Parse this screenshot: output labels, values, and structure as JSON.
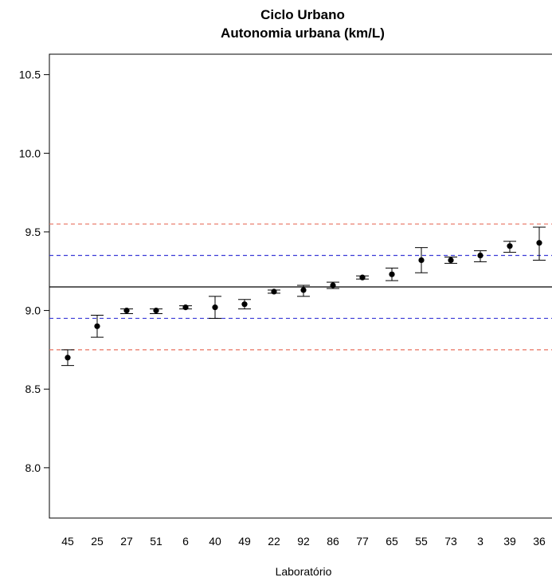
{
  "chart_data": {
    "type": "scatter",
    "title": "Ciclo Urbano",
    "subtitle": "Autonomia urbana (km/L)",
    "xlabel": "Laboratório",
    "ylabel": "",
    "ylim": [
      7.68,
      10.63
    ],
    "yticks": [
      8.0,
      8.5,
      9.0,
      9.5,
      10.0,
      10.5
    ],
    "ytick_labels": [
      "8.0",
      "8.5",
      "9.0",
      "9.5",
      "10.0",
      "10.5"
    ],
    "grid": false,
    "categories": [
      "45",
      "25",
      "27",
      "51",
      "6",
      "40",
      "49",
      "22",
      "92",
      "86",
      "77",
      "65",
      "55",
      "73",
      "3",
      "39",
      "36"
    ],
    "values": [
      8.7,
      8.9,
      9.0,
      9.0,
      9.02,
      9.02,
      9.04,
      9.12,
      9.13,
      9.16,
      9.21,
      9.23,
      9.32,
      9.32,
      9.35,
      9.41,
      9.43
    ],
    "error_low": [
      8.65,
      8.83,
      8.98,
      8.98,
      9.01,
      8.95,
      9.01,
      9.11,
      9.09,
      9.14,
      9.2,
      9.19,
      9.24,
      9.3,
      9.31,
      9.37,
      9.32
    ],
    "error_high": [
      8.75,
      8.97,
      9.01,
      9.01,
      9.03,
      9.09,
      9.07,
      9.13,
      9.16,
      9.18,
      9.22,
      9.27,
      9.4,
      9.34,
      9.38,
      9.44,
      9.53
    ],
    "reference_lines": [
      {
        "value": 9.15,
        "style": "solid",
        "color": "#000000"
      },
      {
        "value": 9.35,
        "style": "dashed",
        "color": "#3a3ad6"
      },
      {
        "value": 8.95,
        "style": "dashed",
        "color": "#3a3ad6"
      },
      {
        "value": 9.55,
        "style": "dashed",
        "color": "#e8705f"
      },
      {
        "value": 8.75,
        "style": "dashed",
        "color": "#e8705f"
      }
    ]
  }
}
